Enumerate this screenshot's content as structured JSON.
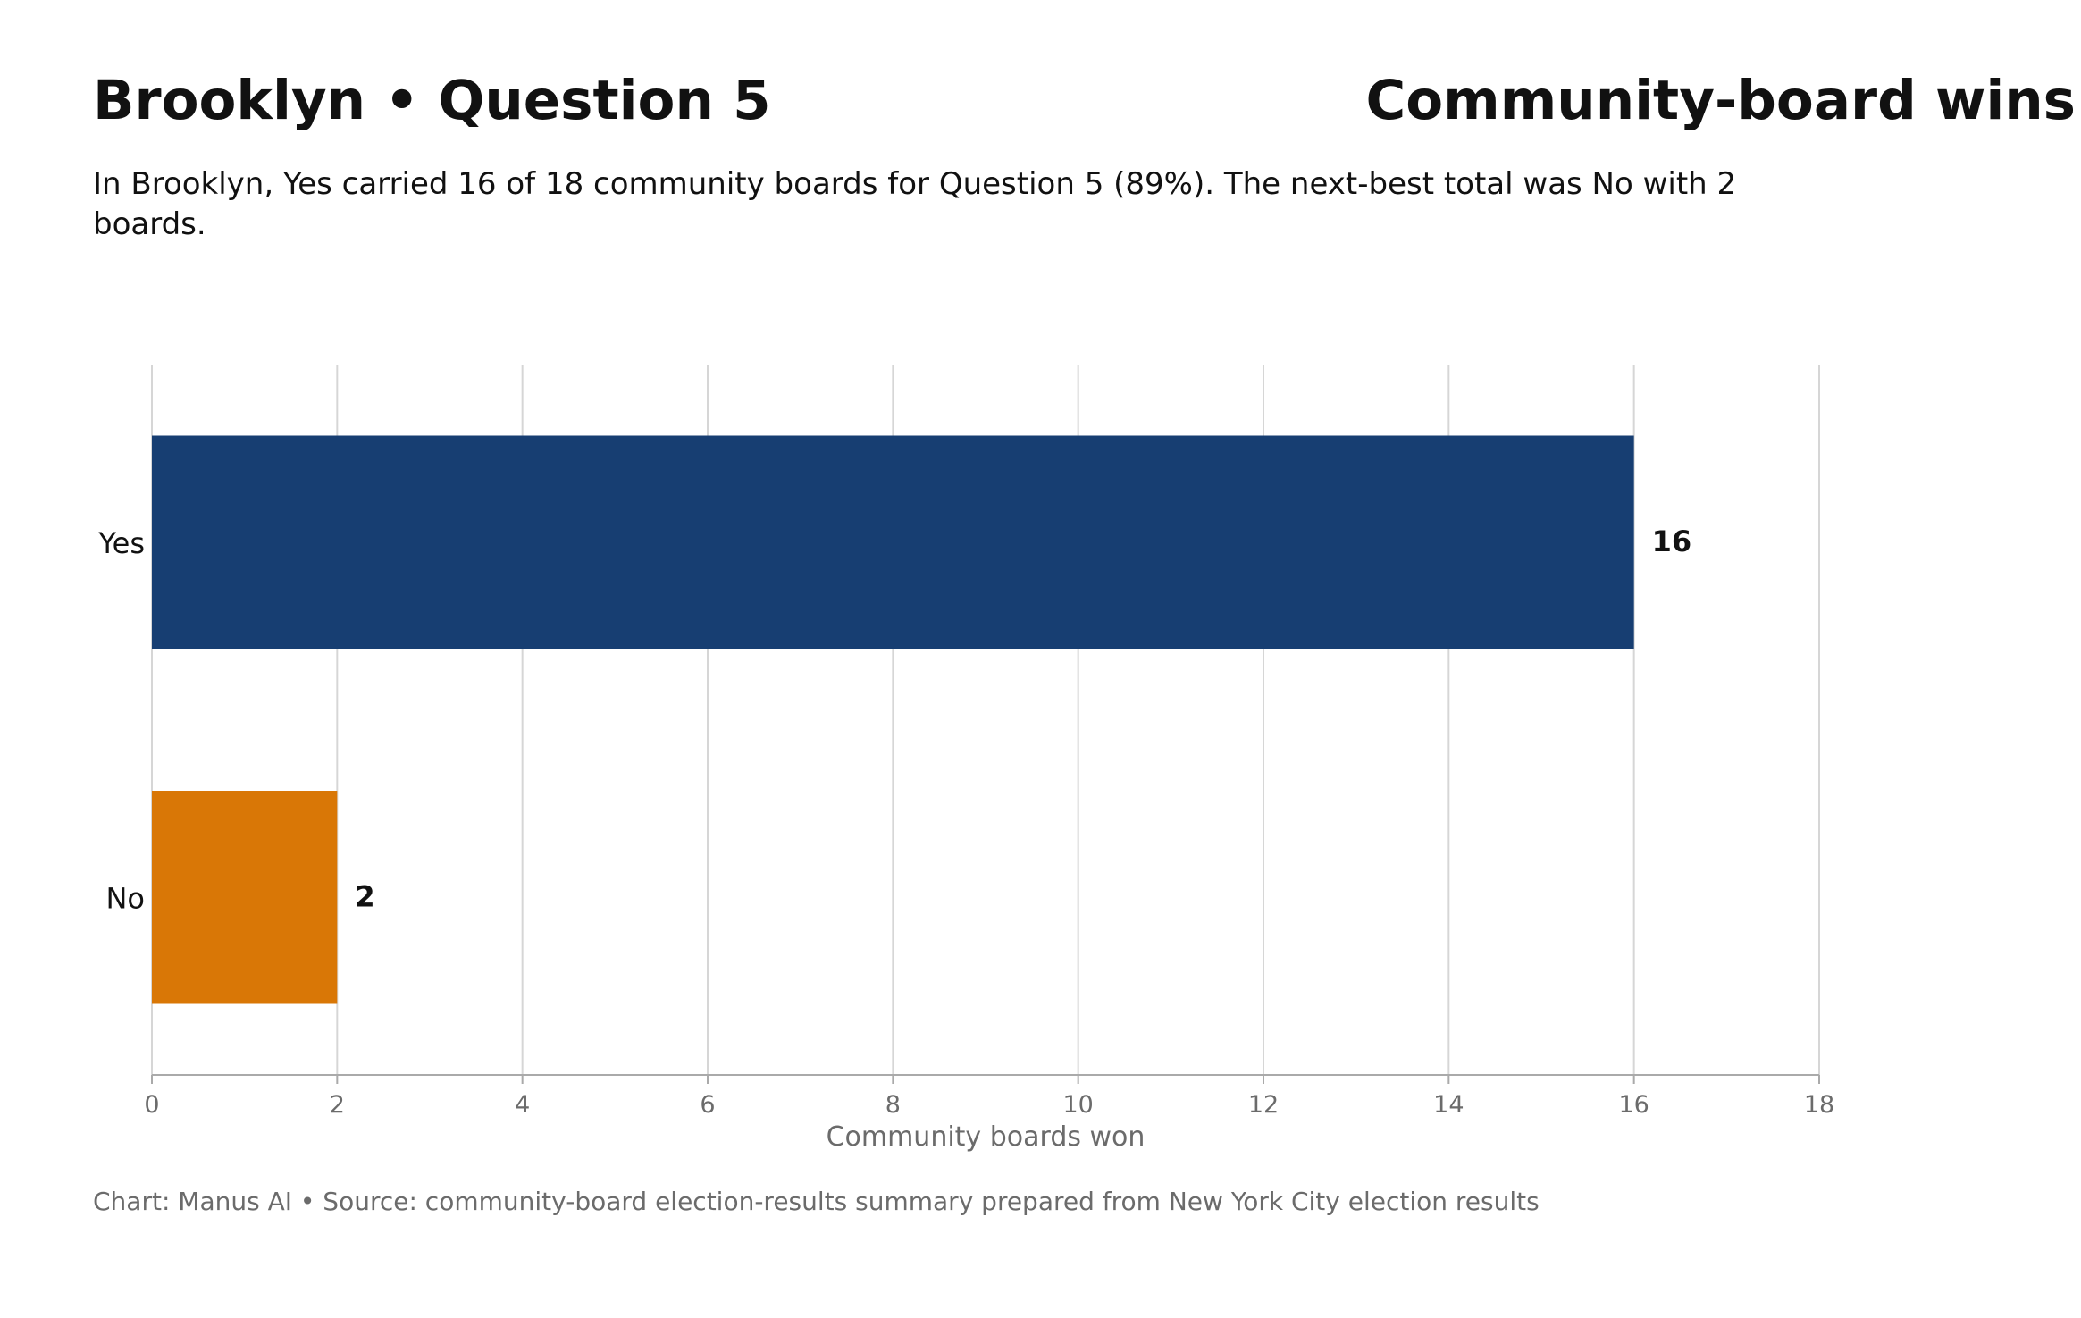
{
  "header": {
    "title": "Brooklyn • Question 5",
    "title_right": "Community-board wins",
    "subtitle": "In Brooklyn, Yes carried 16 of 18 community boards for Question 5 (89%). The next-best total was No with 2 boards."
  },
  "footer": {
    "note": "Chart: Manus AI • Source: community-board election-results summary prepared from New York City election results"
  },
  "chart_data": {
    "type": "bar",
    "orientation": "horizontal",
    "categories": [
      "Yes",
      "No"
    ],
    "values": [
      16,
      2
    ],
    "data_labels": [
      "16",
      "2"
    ],
    "colors": [
      "#173e72",
      "#d97706"
    ],
    "xlabel": "Community boards won",
    "ylabel": "",
    "xlim": [
      0,
      18
    ],
    "xticks": [
      0,
      2,
      4,
      6,
      8,
      10,
      12,
      14,
      16,
      18
    ],
    "grid": true,
    "grid_axis": "x",
    "legend": "none"
  }
}
